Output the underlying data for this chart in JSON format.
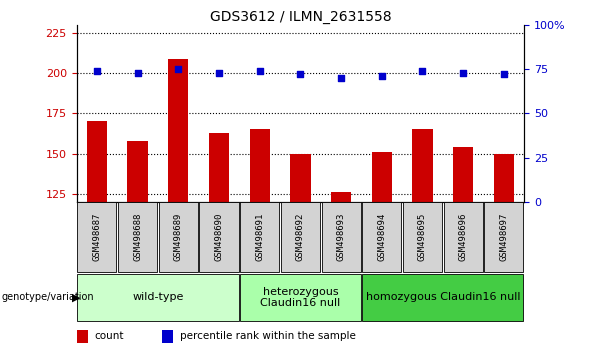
{
  "title": "GDS3612 / ILMN_2631558",
  "samples": [
    "GSM498687",
    "GSM498688",
    "GSM498689",
    "GSM498690",
    "GSM498691",
    "GSM498692",
    "GSM498693",
    "GSM498694",
    "GSM498695",
    "GSM498696",
    "GSM498697"
  ],
  "counts": [
    170,
    158,
    209,
    163,
    165,
    150,
    126,
    151,
    165,
    154,
    150
  ],
  "percentile_ranks": [
    74,
    73,
    75,
    73,
    74,
    72,
    70,
    71,
    74,
    73,
    72
  ],
  "ylim_left": [
    120,
    230
  ],
  "ylim_right": [
    0,
    100
  ],
  "yticks_left": [
    125,
    150,
    175,
    200,
    225
  ],
  "yticks_right": [
    0,
    25,
    50,
    75,
    100
  ],
  "bar_color": "#cc0000",
  "dot_color": "#0000cc",
  "bar_bottom": 120,
  "groups": [
    {
      "label": "wild-type",
      "start": 0,
      "end": 3,
      "color": "#ccffcc"
    },
    {
      "label": "heterozygous\nClaudin16 null",
      "start": 4,
      "end": 6,
      "color": "#aaffaa"
    },
    {
      "label": "homozygous Claudin16 null",
      "start": 7,
      "end": 10,
      "color": "#44cc44"
    }
  ],
  "legend_count_label": "count",
  "legend_percentile_label": "percentile rank within the sample",
  "genotype_label": "genotype/variation",
  "title_fontsize": 10,
  "tick_fontsize": 8,
  "sample_fontsize": 6.5,
  "group_fontsize": 8
}
